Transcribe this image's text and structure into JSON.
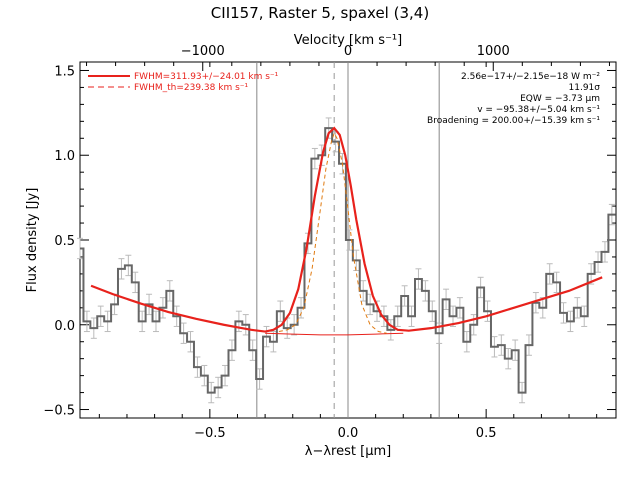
{
  "chart_data": {
    "type": "line",
    "title": "CII157, Raster 5, spaxel (3,4)",
    "xlabel": "λ−λrest [μm]",
    "ylabel": "Flux density [Jy]",
    "top_axis_label": "Velocity [km s⁻¹]",
    "xlim": [
      -0.97,
      0.97
    ],
    "ylim": [
      -0.55,
      1.55
    ],
    "top_xlim": [
      -1845,
      1845
    ],
    "x_ticks": [
      -0.5,
      0.0,
      0.5
    ],
    "x_tick_labels": [
      "−0.5",
      "0.0",
      "0.5"
    ],
    "y_ticks": [
      -0.5,
      0.0,
      0.5,
      1.0,
      1.5
    ],
    "y_tick_labels": [
      "−0.5",
      "0.0",
      "0.5",
      "1.0",
      "1.5"
    ],
    "top_ticks": [
      -1000,
      0,
      1000
    ],
    "top_tick_labels": [
      "−1000",
      "0",
      "1000"
    ],
    "vertical_lines": [
      -0.33,
      0.0,
      0.33
    ],
    "dashed_line_x": -0.05,
    "legend": {
      "position": "top-left",
      "entries": [
        {
          "label": "FWHM=311.93+/−24.01 km s⁻¹",
          "style": "solid",
          "color": "#e8221c"
        },
        {
          "label": "FWHM_th=239.38 km s⁻¹",
          "style": "dashed",
          "color": "#e8221c"
        }
      ]
    },
    "annotations": [
      "2.56e−17+/−2.15e−18 W m⁻²",
      "11.91σ",
      "EQW = −3.73 μm",
      "v = −95.38+/−5.04 km s⁻¹",
      "Broadening = 200.00+/−15.39 km s⁻¹"
    ],
    "observed": {
      "x": [
        -0.97,
        -0.945,
        -0.92,
        -0.895,
        -0.87,
        -0.845,
        -0.82,
        -0.795,
        -0.77,
        -0.745,
        -0.72,
        -0.695,
        -0.67,
        -0.645,
        -0.62,
        -0.595,
        -0.57,
        -0.545,
        -0.52,
        -0.495,
        -0.47,
        -0.445,
        -0.42,
        -0.395,
        -0.37,
        -0.345,
        -0.32,
        -0.295,
        -0.27,
        -0.245,
        -0.22,
        -0.195,
        -0.17,
        -0.145,
        -0.12,
        -0.095,
        -0.07,
        -0.045,
        -0.02,
        0.005,
        0.03,
        0.055,
        0.08,
        0.105,
        0.13,
        0.155,
        0.18,
        0.205,
        0.23,
        0.255,
        0.28,
        0.305,
        0.33,
        0.355,
        0.38,
        0.405,
        0.43,
        0.455,
        0.48,
        0.505,
        0.53,
        0.555,
        0.58,
        0.605,
        0.63,
        0.655,
        0.68,
        0.705,
        0.73,
        0.755,
        0.78,
        0.805,
        0.83,
        0.855,
        0.88,
        0.905,
        0.93,
        0.955
      ],
      "y": [
        0.45,
        0.02,
        -0.02,
        0.05,
        0.02,
        0.12,
        0.33,
        0.35,
        0.25,
        0.02,
        0.12,
        0.02,
        0.1,
        0.2,
        0.05,
        -0.05,
        -0.1,
        -0.25,
        -0.3,
        -0.4,
        -0.37,
        -0.3,
        -0.15,
        0.02,
        0.0,
        -0.15,
        -0.32,
        -0.07,
        -0.1,
        0.08,
        -0.02,
        0.0,
        0.1,
        0.48,
        0.98,
        1.0,
        1.16,
        1.08,
        0.95,
        0.5,
        0.38,
        0.2,
        0.12,
        0.08,
        0.05,
        -0.03,
        0.05,
        0.17,
        0.05,
        0.27,
        0.2,
        0.08,
        -0.05,
        0.15,
        0.05,
        0.1,
        -0.1,
        0.0,
        0.22,
        0.08,
        -0.13,
        -0.12,
        -0.2,
        -0.15,
        -0.4,
        -0.12,
        0.13,
        0.1,
        0.3,
        0.25,
        0.07,
        0.02,
        0.1,
        0.05,
        0.3,
        0.37,
        0.43,
        0.65
      ],
      "errors": 0.06
    },
    "fit_total": {
      "x": [
        -0.93,
        -0.85,
        -0.75,
        -0.65,
        -0.55,
        -0.45,
        -0.4,
        -0.35,
        -0.3,
        -0.27,
        -0.24,
        -0.21,
        -0.18,
        -0.15,
        -0.12,
        -0.09,
        -0.07,
        -0.05,
        -0.03,
        -0.01,
        0.01,
        0.03,
        0.06,
        0.09,
        0.12,
        0.15,
        0.18,
        0.22,
        0.3,
        0.4,
        0.5,
        0.6,
        0.7,
        0.8,
        0.92
      ],
      "y": [
        0.23,
        0.18,
        0.125,
        0.075,
        0.035,
        0.0,
        -0.015,
        -0.03,
        -0.04,
        -0.03,
        0.0,
        0.07,
        0.21,
        0.45,
        0.76,
        1.02,
        1.13,
        1.16,
        1.12,
        1.0,
        0.82,
        0.62,
        0.36,
        0.17,
        0.06,
        0.0,
        -0.03,
        -0.035,
        -0.02,
        0.01,
        0.05,
        0.1,
        0.15,
        0.2,
        0.28
      ]
    },
    "fit_line_only": {
      "x": [
        -0.25,
        -0.22,
        -0.19,
        -0.16,
        -0.13,
        -0.1,
        -0.08,
        -0.06,
        -0.05,
        -0.04,
        -0.02,
        0.0,
        0.02,
        0.05,
        0.08,
        0.11,
        0.14
      ],
      "y": [
        -0.04,
        -0.03,
        0.0,
        0.1,
        0.33,
        0.68,
        0.92,
        1.08,
        1.13,
        1.1,
        0.95,
        0.68,
        0.4,
        0.12,
        0.0,
        -0.04,
        -0.05
      ]
    },
    "baseline": {
      "x": [
        -0.3,
        -0.2,
        -0.1,
        0.0,
        0.1,
        0.2
      ],
      "y": [
        -0.05,
        -0.055,
        -0.06,
        -0.06,
        -0.055,
        -0.05
      ]
    }
  }
}
